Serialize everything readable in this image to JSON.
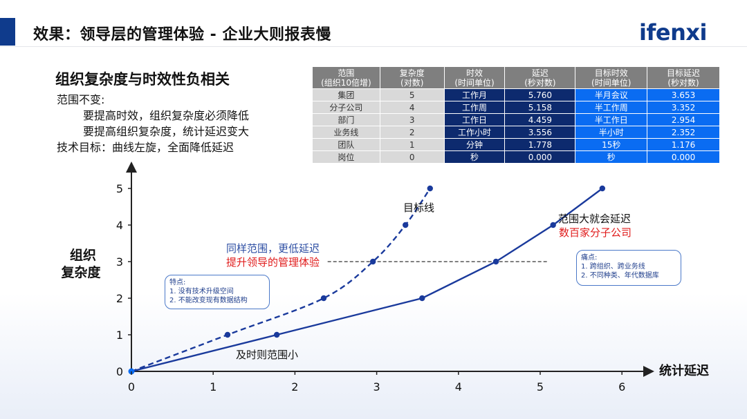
{
  "header": {
    "title": "效果：领导层的管理体验 - 企业大则报表慢",
    "logo": "ifenxi"
  },
  "subtitle": "组织复杂度与时效性负相关",
  "notes": [
    "范围不变:",
    "要提高时效，组织复杂度必须降低",
    "要提高组织复杂度，统计延迟变大",
    "技术目标：曲线左旋，全面降低延迟"
  ],
  "table": {
    "headers": [
      [
        "范围",
        "(组织10倍增)"
      ],
      [
        "复杂度",
        "(对数)"
      ],
      [
        "时效",
        "(时间单位)"
      ],
      [
        "延迟",
        "(秒对数)"
      ],
      [
        "目标时效",
        "(时间单位)"
      ],
      [
        "目标延迟",
        "(秒对数)"
      ]
    ],
    "rows": [
      [
        "集团",
        "5",
        "工作月",
        "5.760",
        "半月会议",
        "3.653"
      ],
      [
        "分子公司",
        "4",
        "工作周",
        "5.158",
        "半工作周",
        "3.352"
      ],
      [
        "部门",
        "3",
        "工作日",
        "4.459",
        "半工作日",
        "2.954"
      ],
      [
        "业务线",
        "2",
        "工作小时",
        "3.556",
        "半小时",
        "2.352"
      ],
      [
        "团队",
        "1",
        "分钟",
        "1.778",
        "15秒",
        "1.176"
      ],
      [
        "岗位",
        "0",
        "秒",
        "0.000",
        "秒",
        "0.000"
      ]
    ]
  },
  "chart_data": {
    "type": "line",
    "xlabel": "统计延迟",
    "ylabel": "组织复杂度",
    "xlim": [
      0,
      6
    ],
    "ylim": [
      0,
      5
    ],
    "xticks": [
      "0",
      "1",
      "2",
      "3",
      "4",
      "5",
      "6"
    ],
    "yticks": [
      "0",
      "1",
      "2",
      "3",
      "4",
      "5"
    ],
    "series": [
      {
        "style": "solid",
        "color": "#1a3a9c",
        "points": [
          [
            0,
            0
          ],
          [
            1.778,
            1
          ],
          [
            3.556,
            2
          ],
          [
            4.459,
            3
          ],
          [
            5.158,
            4
          ],
          [
            5.76,
            5
          ]
        ]
      },
      {
        "style": "dashed",
        "color": "#1a3a9c",
        "points": [
          [
            0,
            0
          ],
          [
            1.176,
            1
          ],
          [
            2.352,
            2
          ],
          [
            2.954,
            3
          ],
          [
            3.352,
            4
          ],
          [
            3.653,
            5
          ]
        ]
      }
    ],
    "reference_line": {
      "y": 3,
      "x_from": 2.4,
      "x_to": 5.1
    },
    "annotations": {
      "target_line": "目标线",
      "bottom_label": "及时则范围小",
      "left_blue": "同样范围，更低延迟",
      "left_red": "提升领导的管理体验",
      "right_dark": "范围大就会延迟",
      "right_red": "数百家分子公司"
    },
    "note_left": {
      "title": "特点:",
      "items": [
        "1.   没有技术升级空间",
        "2.   不能改变现有数据结构"
      ]
    },
    "note_right": {
      "title": "痛点:",
      "items": [
        "1.   跨组织、跨业务线",
        "2.   不同种类、年代数据库"
      ]
    }
  }
}
